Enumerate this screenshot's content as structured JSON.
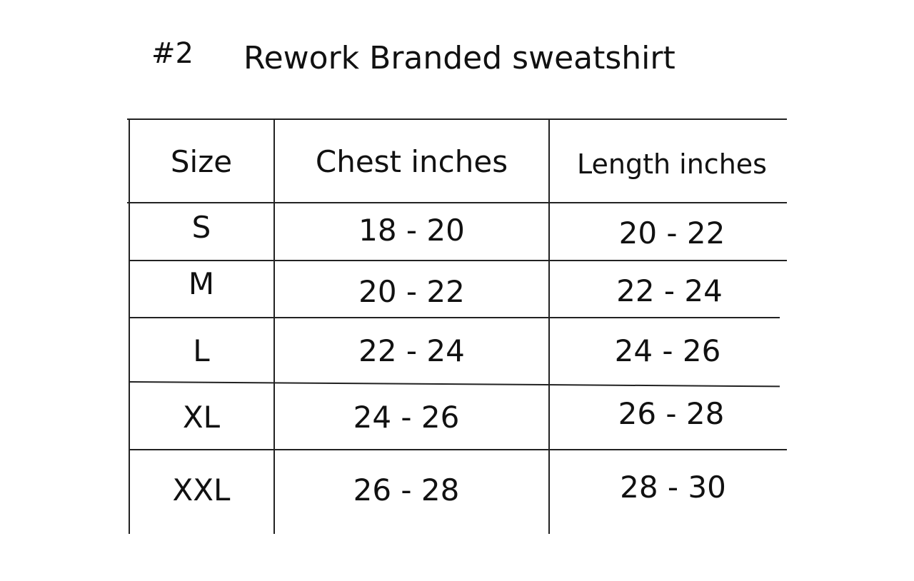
{
  "header": {
    "number": "#2",
    "title": "Rework Branded sweatshirt"
  },
  "table": {
    "columns": [
      "Size",
      "Chest inches",
      "Length inches"
    ],
    "rows": [
      [
        "S",
        "18 - 20",
        "20 - 22"
      ],
      [
        "M",
        "20 - 22",
        "22 - 24"
      ],
      [
        "L",
        "22 - 24",
        "24 - 26"
      ],
      [
        "XL",
        "24 - 26",
        "26 - 28"
      ],
      [
        "XXL",
        "26 - 28",
        "28 - 30"
      ]
    ]
  }
}
